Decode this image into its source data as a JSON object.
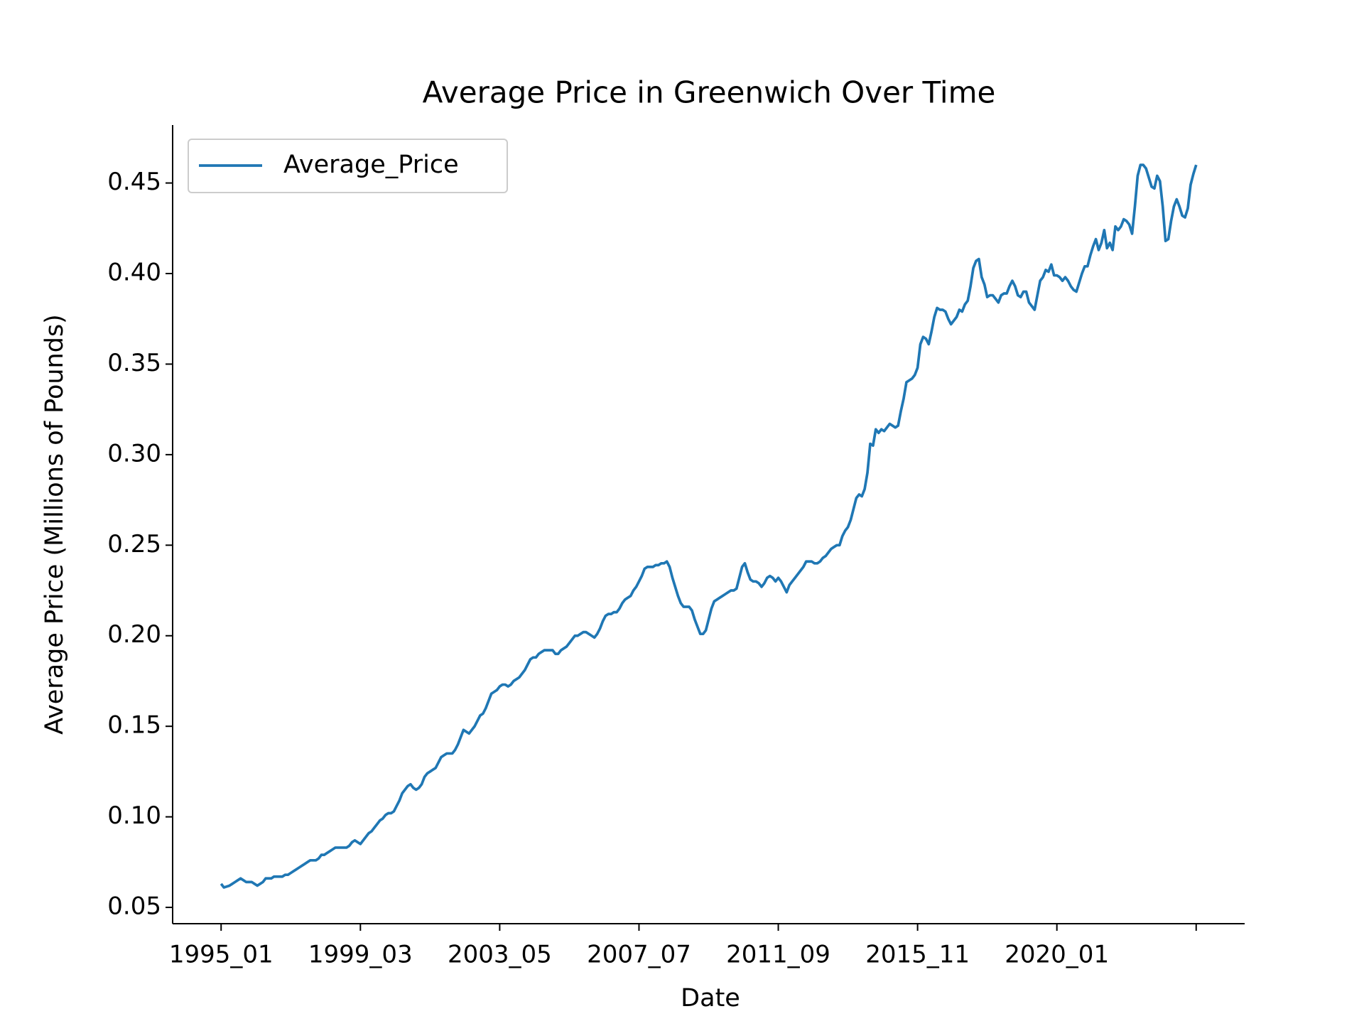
{
  "chart_data": {
    "type": "line",
    "title": "Average Price in Greenwich Over Time",
    "x_label": "Date",
    "y_label": "Average Price (Millions of Pounds)",
    "legend": "upper left",
    "categories": [
      "1995_01",
      null,
      null,
      null,
      null,
      null,
      null,
      null,
      null,
      null,
      null,
      null,
      null,
      null,
      null,
      null,
      null,
      null,
      null,
      null,
      null,
      null,
      null,
      null,
      null,
      null,
      null,
      null,
      null,
      null,
      null,
      null,
      null,
      null,
      null,
      null,
      null,
      null,
      null,
      null,
      null,
      null,
      null,
      null,
      null,
      null,
      null,
      null,
      null,
      null,
      "1999_03",
      null,
      null,
      null,
      null,
      null,
      null,
      null,
      null,
      null,
      null,
      null,
      null,
      null,
      null,
      null,
      null,
      null,
      null,
      null,
      null,
      null,
      null,
      null,
      null,
      null,
      null,
      null,
      null,
      null,
      null,
      null,
      null,
      null,
      null,
      null,
      null,
      null,
      null,
      null,
      null,
      null,
      null,
      null,
      null,
      null,
      null,
      null,
      null,
      null,
      "2003_05",
      null,
      null,
      null,
      null,
      null,
      null,
      null,
      null,
      null,
      null,
      null,
      null,
      null,
      null,
      null,
      null,
      null,
      null,
      null,
      null,
      null,
      null,
      null,
      null,
      null,
      null,
      null,
      null,
      null,
      null,
      null,
      null,
      null,
      null,
      null,
      null,
      null,
      null,
      null,
      null,
      null,
      null,
      null,
      null,
      null,
      null,
      null,
      null,
      null,
      "2007_07",
      null,
      null,
      null,
      null,
      null,
      null,
      null,
      null,
      null,
      null,
      null,
      null,
      null,
      null,
      null,
      null,
      null,
      null,
      null,
      null,
      null,
      null,
      null,
      null,
      null,
      null,
      null,
      null,
      null,
      null,
      null,
      null,
      null,
      null,
      null,
      null,
      null,
      null,
      null,
      null,
      null,
      null,
      null,
      null,
      null,
      null,
      null,
      null,
      null,
      "2011_09",
      null,
      null,
      null,
      null,
      null,
      null,
      null,
      null,
      null,
      null,
      null,
      null,
      null,
      null,
      null,
      null,
      null,
      null,
      null,
      null,
      null,
      null,
      null,
      null,
      null,
      null,
      null,
      null,
      null,
      null,
      null,
      null,
      null,
      null,
      null,
      null,
      null,
      null,
      null,
      null,
      null,
      null,
      null,
      null,
      null,
      null,
      null,
      null,
      null,
      "2015_11",
      null,
      null,
      null,
      null,
      null,
      null,
      null,
      null,
      null,
      null,
      null,
      null,
      null,
      null,
      null,
      null,
      null,
      null,
      null,
      null,
      null,
      null,
      null,
      null,
      null,
      null,
      null,
      null,
      null,
      null,
      null,
      null,
      null,
      null,
      null,
      null,
      null,
      null,
      null,
      null,
      null,
      null,
      null,
      null,
      null,
      null,
      null,
      null,
      null,
      "2020_01",
      null,
      null,
      null,
      null,
      null,
      null,
      null,
      null,
      null,
      null,
      null,
      null,
      null,
      null,
      null,
      null,
      null,
      null,
      null,
      null,
      null,
      null,
      null,
      null,
      null,
      null,
      null,
      null,
      null,
      null,
      null,
      null,
      null,
      null,
      null,
      null,
      null,
      null,
      null,
      null,
      null,
      null,
      null,
      null,
      null,
      null,
      null,
      null,
      null,
      null
    ],
    "series": [
      {
        "name": "Average_Price",
        "color": "#1f77b4",
        "values": [
          0.063,
          0.061,
          0.0615,
          0.062,
          0.063,
          0.064,
          0.065,
          0.066,
          0.065,
          0.064,
          0.064,
          0.064,
          0.063,
          0.062,
          0.063,
          0.064,
          0.066,
          0.066,
          0.066,
          0.067,
          0.067,
          0.067,
          0.067,
          0.068,
          0.068,
          0.069,
          0.07,
          0.071,
          0.072,
          0.073,
          0.074,
          0.075,
          0.076,
          0.076,
          0.076,
          0.077,
          0.079,
          0.079,
          0.08,
          0.081,
          0.082,
          0.083,
          0.083,
          0.083,
          0.083,
          0.083,
          0.084,
          0.086,
          0.087,
          0.086,
          0.085,
          0.087,
          0.089,
          0.091,
          0.092,
          0.094,
          0.096,
          0.098,
          0.099,
          0.101,
          0.102,
          0.102,
          0.103,
          0.106,
          0.109,
          0.113,
          0.115,
          0.117,
          0.118,
          0.116,
          0.115,
          0.116,
          0.118,
          0.122,
          0.124,
          0.125,
          0.126,
          0.127,
          0.13,
          0.133,
          0.134,
          0.135,
          0.135,
          0.135,
          0.137,
          0.14,
          0.144,
          0.148,
          0.147,
          0.146,
          0.148,
          0.15,
          0.153,
          0.156,
          0.157,
          0.16,
          0.164,
          0.168,
          0.169,
          0.17,
          0.172,
          0.173,
          0.173,
          0.172,
          0.173,
          0.175,
          0.176,
          0.177,
          0.179,
          0.181,
          0.184,
          0.187,
          0.188,
          0.188,
          0.19,
          0.191,
          0.192,
          0.192,
          0.192,
          0.192,
          0.19,
          0.19,
          0.192,
          0.193,
          0.194,
          0.196,
          0.198,
          0.2,
          0.2,
          0.201,
          0.202,
          0.202,
          0.201,
          0.2,
          0.199,
          0.201,
          0.204,
          0.208,
          0.211,
          0.212,
          0.212,
          0.213,
          0.213,
          0.215,
          0.218,
          0.22,
          0.221,
          0.222,
          0.225,
          0.227,
          0.23,
          0.233,
          0.237,
          0.238,
          0.238,
          0.238,
          0.239,
          0.239,
          0.24,
          0.24,
          0.241,
          0.238,
          0.232,
          0.227,
          0.222,
          0.218,
          0.216,
          0.216,
          0.216,
          0.214,
          0.209,
          0.205,
          0.201,
          0.201,
          0.203,
          0.209,
          0.215,
          0.219,
          0.22,
          0.221,
          0.222,
          0.223,
          0.224,
          0.225,
          0.225,
          0.226,
          0.232,
          0.238,
          0.24,
          0.235,
          0.231,
          0.23,
          0.23,
          0.229,
          0.227,
          0.229,
          0.232,
          0.233,
          0.232,
          0.23,
          0.232,
          0.23,
          0.227,
          0.224,
          0.228,
          0.23,
          0.232,
          0.234,
          0.236,
          0.238,
          0.241,
          0.241,
          0.241,
          0.24,
          0.24,
          0.241,
          0.243,
          0.244,
          0.246,
          0.248,
          0.249,
          0.25,
          0.25,
          0.255,
          0.258,
          0.26,
          0.264,
          0.27,
          0.276,
          0.278,
          0.277,
          0.281,
          0.29,
          0.306,
          0.305,
          0.314,
          0.312,
          0.314,
          0.313,
          0.315,
          0.317,
          0.316,
          0.315,
          0.316,
          0.324,
          0.331,
          0.34,
          0.341,
          0.342,
          0.344,
          0.348,
          0.361,
          0.365,
          0.364,
          0.361,
          0.368,
          0.376,
          0.381,
          0.38,
          0.38,
          0.379,
          0.375,
          0.372,
          0.374,
          0.376,
          0.38,
          0.379,
          0.383,
          0.385,
          0.393,
          0.403,
          0.407,
          0.408,
          0.398,
          0.394,
          0.387,
          0.388,
          0.388,
          0.386,
          0.384,
          0.388,
          0.389,
          0.389,
          0.393,
          0.396,
          0.393,
          0.388,
          0.387,
          0.39,
          0.39,
          0.384,
          0.382,
          0.38,
          0.388,
          0.396,
          0.398,
          0.402,
          0.401,
          0.405,
          0.399,
          0.399,
          0.398,
          0.396,
          0.398,
          0.396,
          0.393,
          0.391,
          0.39,
          0.395,
          0.4,
          0.404,
          0.404,
          0.41,
          0.415,
          0.419,
          0.413,
          0.417,
          0.424,
          0.414,
          0.417,
          0.413,
          0.426,
          0.424,
          0.426,
          0.43,
          0.429,
          0.427,
          0.422,
          0.437,
          0.454,
          0.46,
          0.46,
          0.458,
          0.453,
          0.448,
          0.447,
          0.454,
          0.451,
          0.437,
          0.418,
          0.419,
          0.429,
          0.437,
          0.441,
          0.437,
          0.432,
          0.431,
          0.436,
          0.449,
          0.455,
          0.46
        ]
      }
    ],
    "ylim": [
      0.041,
      0.482
    ],
    "yticks": [
      0.05,
      {
        "value": 0.1,
        "label": "0.10"
      },
      0.15,
      {
        "value": 0.2,
        "label": "0.20"
      },
      0.25,
      {
        "value": 0.3,
        "label": "0.30"
      },
      0.35,
      {
        "value": 0.4,
        "label": "0.40"
      },
      0.45
    ],
    "grid": false
  }
}
